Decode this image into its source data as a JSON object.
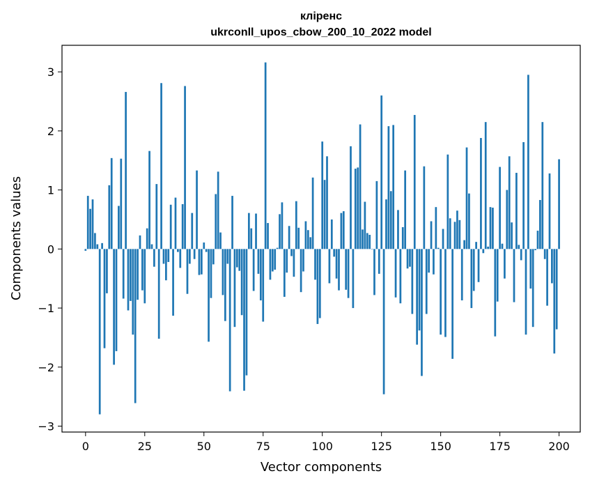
{
  "chart_data": {
    "type": "bar",
    "title": "кліренс",
    "subtitle": "ukrconll_upos_cbow_200_10_2022 model",
    "xlabel": "Vector components",
    "ylabel": "Components values",
    "xlim": [
      -9.95,
      208.95
    ],
    "ylim": [
      -3.1,
      3.45
    ],
    "xticks": [
      0,
      25,
      50,
      75,
      100,
      125,
      150,
      175,
      200
    ],
    "xtick_labels": [
      "0",
      "25",
      "50",
      "75",
      "100",
      "125",
      "150",
      "175",
      "200"
    ],
    "yticks": [
      -3,
      -2,
      -1,
      0,
      1,
      2,
      3
    ],
    "ytick_labels": [
      "−3",
      "−2",
      "−1",
      "0",
      "1",
      "2",
      "3"
    ],
    "bar_color": "#1f77b4",
    "grid": false,
    "values": [
      -0.03,
      0.9,
      0.68,
      0.84,
      0.27,
      0.08,
      -2.8,
      0.1,
      -1.68,
      -0.75,
      1.08,
      1.54,
      -1.96,
      -1.73,
      0.73,
      1.53,
      -0.84,
      2.66,
      -1.04,
      -0.88,
      -1.45,
      -2.61,
      -0.86,
      0.23,
      -0.7,
      -0.92,
      0.35,
      1.66,
      0.08,
      -0.3,
      1.1,
      -1.52,
      2.81,
      -0.25,
      -0.53,
      -0.22,
      0.75,
      -1.13,
      0.87,
      -0.05,
      -0.32,
      0.76,
      2.76,
      -0.76,
      -0.25,
      0.61,
      -0.17,
      1.33,
      -0.44,
      -0.43,
      0.11,
      -0.05,
      -1.57,
      -0.83,
      -0.26,
      0.93,
      1.31,
      0.28,
      -0.78,
      -1.22,
      -0.25,
      -2.41,
      0.9,
      -1.32,
      -0.31,
      -0.37,
      -1.12,
      -2.4,
      -2.14,
      0.61,
      0.35,
      -0.71,
      0.6,
      -0.42,
      -0.87,
      -1.23,
      3.16,
      0.44,
      -0.52,
      -0.38,
      -0.35,
      0.02,
      0.59,
      0.79,
      -0.81,
      -0.4,
      0.39,
      -0.12,
      -0.47,
      0.81,
      0.36,
      -0.73,
      -0.38,
      0.47,
      0.32,
      0.2,
      1.21,
      -0.52,
      -1.27,
      -1.17,
      1.82,
      1.17,
      1.57,
      -0.58,
      0.5,
      -0.13,
      -0.5,
      -0.7,
      0.61,
      0.64,
      -0.69,
      -0.83,
      1.74,
      -1.0,
      1.36,
      1.38,
      2.11,
      0.33,
      0.8,
      0.27,
      0.24,
      0.0,
      -0.78,
      1.15,
      -0.42,
      2.6,
      -2.46,
      0.84,
      2.08,
      0.98,
      2.1,
      -0.82,
      0.66,
      -0.92,
      0.37,
      1.33,
      -0.33,
      -0.3,
      -1.1,
      2.27,
      -1.62,
      -1.38,
      -2.15,
      1.4,
      -1.1,
      -0.4,
      0.47,
      -0.43,
      0.71,
      0.02,
      -1.45,
      0.34,
      -1.49,
      1.6,
      0.52,
      -1.86,
      0.46,
      0.65,
      0.49,
      -0.87,
      0.15,
      1.72,
      0.94,
      -1.0,
      -0.71,
      0.12,
      -0.56,
      1.88,
      -0.07,
      2.15,
      0.04,
      0.71,
      0.7,
      -1.48,
      -0.89,
      1.39,
      0.09,
      -0.5,
      1.0,
      1.57,
      0.45,
      -0.9,
      1.29,
      0.07,
      -0.19,
      1.81,
      -1.45,
      2.95,
      -0.67,
      -1.32,
      -0.02,
      0.31,
      0.83,
      2.15,
      -0.17,
      -0.96,
      1.28,
      -0.58,
      -1.77,
      -1.36,
      1.52
    ]
  }
}
